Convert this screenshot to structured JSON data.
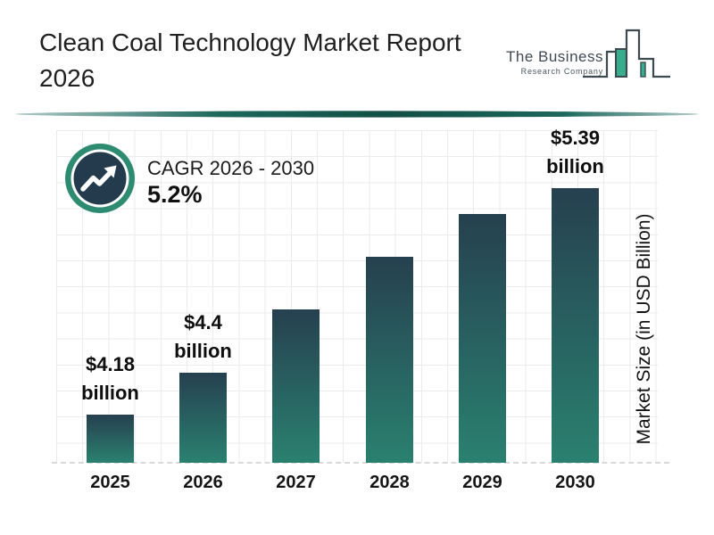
{
  "header": {
    "title_line1": "Clean Coal Technology Market Report",
    "title_line2": "2026"
  },
  "logo": {
    "name": "The Business",
    "subname": "Research Company"
  },
  "cagr": {
    "label": "CAGR 2026 - 2030",
    "value": "5.2%"
  },
  "chart_data": {
    "type": "bar",
    "title": "Clean Coal Technology Market Report 2026",
    "categories": [
      "2025",
      "2026",
      "2027",
      "2028",
      "2029",
      "2030"
    ],
    "values": [
      4.18,
      4.4,
      4.74,
      5.02,
      5.25,
      5.39
    ],
    "bar_labels": [
      {
        "index": 0,
        "line1": "$4.18",
        "line2": "billion"
      },
      {
        "index": 1,
        "line1": "$4.4",
        "line2": "billion"
      },
      {
        "index": 5,
        "line1": "$5.39",
        "line2": "billion"
      }
    ],
    "xlabel": "",
    "ylabel": "Market Size (in USD Billion)",
    "value_axis": {
      "min": 3.92,
      "max": 5.7,
      "ticks_visible": false
    },
    "grid": true,
    "legend": false
  },
  "colors": {
    "text": "#1c1c1c",
    "bar_top": "#26404f",
    "bar_bottom": "#2a8170",
    "ring": "#2e8b72",
    "icon_circle": "#233b4d",
    "divider": "#1c675b",
    "logo_green": "#36ae8d",
    "logo_outline": "#3d4a52",
    "grid_line": "#ebebeb",
    "baseline_dash": "#d9d9d9"
  }
}
